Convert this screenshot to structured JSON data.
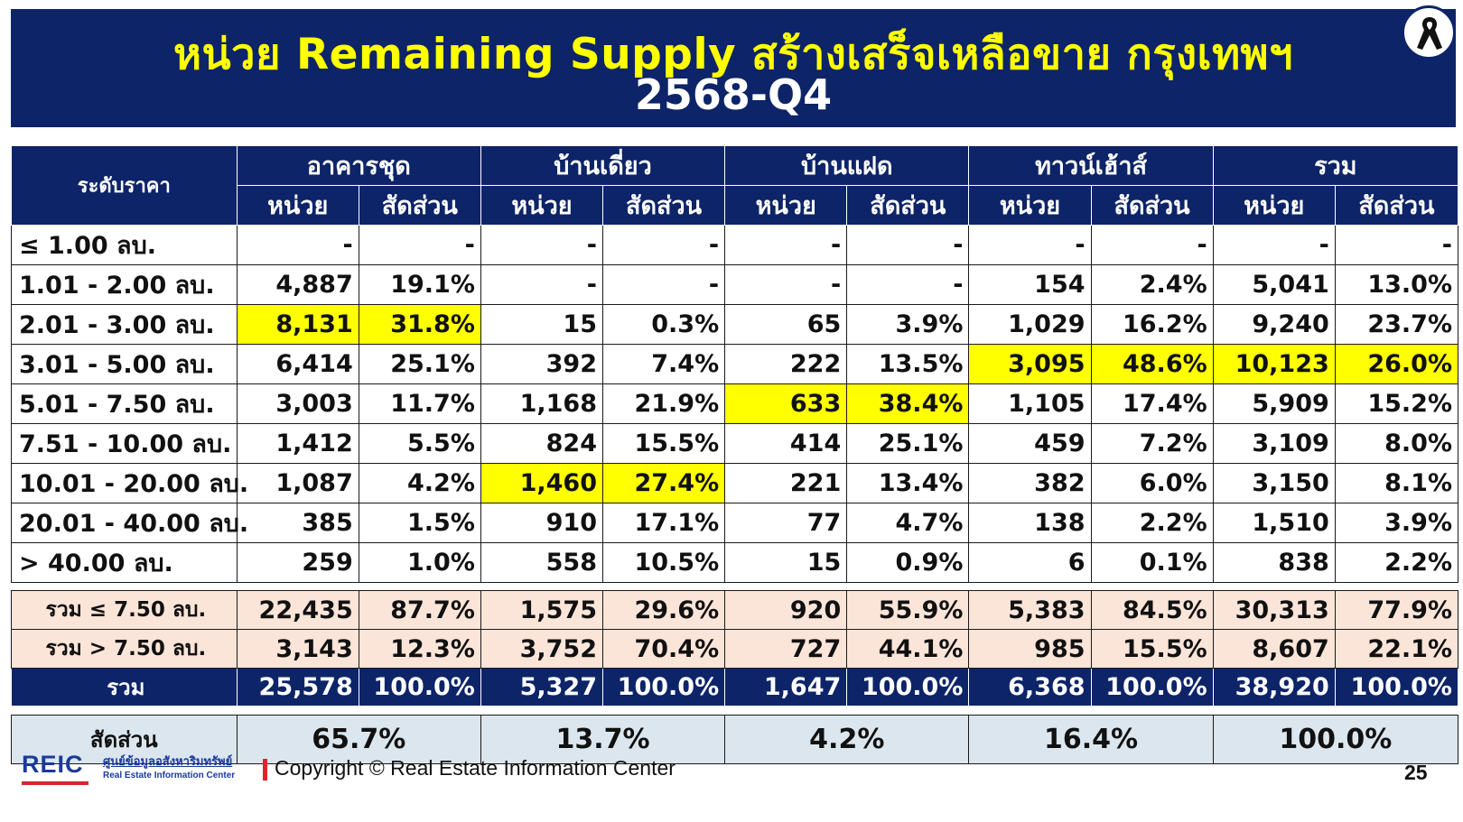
{
  "title": {
    "line1": "หน่วย Remaining Supply สร้างเสร็จเหลือขาย กรุงเทพฯ",
    "line2": "2568-Q4"
  },
  "badge_icon": "mourning-ribbon-icon",
  "table": {
    "corner_label": "ระดับราคา",
    "groups": [
      "อาคารชุด",
      "บ้านเดี่ยว",
      "บ้านแฝด",
      "ทาวน์เฮ้าส์",
      "รวม"
    ],
    "sub_headers": {
      "units": "หน่วย",
      "share": "สัดส่วน"
    },
    "rows": [
      {
        "label": "≤ 1.00 ลบ.",
        "cells": [
          "-",
          "-",
          "-",
          "-",
          "-",
          "-",
          "-",
          "-",
          "-",
          "-"
        ],
        "highlight": []
      },
      {
        "label": "1.01 - 2.00 ลบ.",
        "cells": [
          "4,887",
          "19.1%",
          "-",
          "-",
          "-",
          "-",
          "154",
          "2.4%",
          "5,041",
          "13.0%"
        ],
        "highlight": []
      },
      {
        "label": "2.01 - 3.00 ลบ.",
        "cells": [
          "8,131",
          "31.8%",
          "15",
          "0.3%",
          "65",
          "3.9%",
          "1,029",
          "16.2%",
          "9,240",
          "23.7%"
        ],
        "highlight": [
          0,
          1
        ]
      },
      {
        "label": "3.01 - 5.00 ลบ.",
        "cells": [
          "6,414",
          "25.1%",
          "392",
          "7.4%",
          "222",
          "13.5%",
          "3,095",
          "48.6%",
          "10,123",
          "26.0%"
        ],
        "highlight": [
          6,
          7,
          8,
          9
        ]
      },
      {
        "label": "5.01 - 7.50 ลบ.",
        "cells": [
          "3,003",
          "11.7%",
          "1,168",
          "21.9%",
          "633",
          "38.4%",
          "1,105",
          "17.4%",
          "5,909",
          "15.2%"
        ],
        "highlight": [
          4,
          5
        ]
      },
      {
        "label": "7.51 - 10.00 ลบ.",
        "cells": [
          "1,412",
          "5.5%",
          "824",
          "15.5%",
          "414",
          "25.1%",
          "459",
          "7.2%",
          "3,109",
          "8.0%"
        ],
        "highlight": []
      },
      {
        "label": "10.01 - 20.00 ลบ.",
        "cells": [
          "1,087",
          "4.2%",
          "1,460",
          "27.4%",
          "221",
          "13.4%",
          "382",
          "6.0%",
          "3,150",
          "8.1%"
        ],
        "highlight": [
          2,
          3
        ]
      },
      {
        "label": "20.01 - 40.00 ลบ.",
        "cells": [
          "385",
          "1.5%",
          "910",
          "17.1%",
          "77",
          "4.7%",
          "138",
          "2.2%",
          "1,510",
          "3.9%"
        ],
        "highlight": []
      },
      {
        "label": "> 40.00 ลบ.",
        "cells": [
          "259",
          "1.0%",
          "558",
          "10.5%",
          "15",
          "0.9%",
          "6",
          "0.1%",
          "838",
          "2.2%"
        ],
        "highlight": []
      }
    ],
    "subtotals": [
      {
        "label": "รวม ≤ 7.50 ลบ.",
        "cells": [
          "22,435",
          "87.7%",
          "1,575",
          "29.6%",
          "920",
          "55.9%",
          "5,383",
          "84.5%",
          "30,313",
          "77.9%"
        ]
      },
      {
        "label": "รวม > 7.50 ลบ.",
        "cells": [
          "3,143",
          "12.3%",
          "3,752",
          "70.4%",
          "727",
          "44.1%",
          "985",
          "15.5%",
          "8,607",
          "22.1%"
        ]
      }
    ],
    "total": {
      "label": "รวม",
      "cells": [
        "25,578",
        "100.0%",
        "5,327",
        "100.0%",
        "1,647",
        "100.0%",
        "6,368",
        "100.0%",
        "38,920",
        "100.0%"
      ]
    },
    "share_row": {
      "label": "สัดส่วน",
      "cells": [
        "65.7%",
        "13.7%",
        "4.2%",
        "16.4%",
        "100.0%"
      ]
    }
  },
  "colors": {
    "navy": "#0d2468",
    "title_yellow": "#ffff00",
    "highlight_yellow": "#ffff00",
    "subtotal_peach": "#fbe5d9",
    "share_blue": "#dbe6ee"
  },
  "footer": {
    "logo_text": "REIC",
    "org_thai": "ศูนย์ข้อมูลอสังหาริมทรัพย์",
    "org_english": "Real Estate Information Center",
    "copyright": "Copyright © Real Estate Information Center",
    "page_number": "25"
  }
}
